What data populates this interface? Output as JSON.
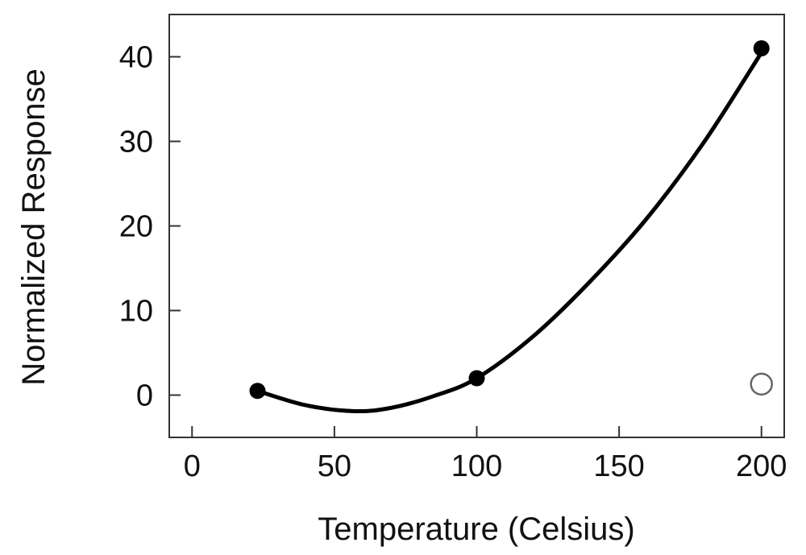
{
  "chart_data": {
    "type": "scatter",
    "xlabel": "Temperature (Celsius)",
    "ylabel": "Normalized Response",
    "xlim": [
      -8,
      208
    ],
    "ylim": [
      -5,
      45
    ],
    "x_ticks": [
      0,
      50,
      100,
      150,
      200
    ],
    "y_ticks": [
      0,
      10,
      20,
      30,
      40
    ],
    "grid": false,
    "series": [
      {
        "style": "filled-markers",
        "points": [
          {
            "x": 23,
            "y": 0.5
          },
          {
            "x": 100,
            "y": 2
          },
          {
            "x": 200,
            "y": 41
          }
        ]
      },
      {
        "style": "open-markers",
        "points": [
          {
            "x": 200,
            "y": 1.3
          }
        ]
      },
      {
        "style": "fitted-curve",
        "x": [
          23,
          40,
          57,
          70,
          85,
          100,
          120,
          140,
          160,
          180,
          200
        ],
        "y": [
          0.5,
          -1.2,
          -1.9,
          -1.5,
          -0.1,
          2.0,
          7.0,
          13.5,
          21.0,
          30.0,
          40.5
        ]
      }
    ],
    "colors": {
      "marker": "#000000",
      "curve": "#000000",
      "open_marker": "#666666",
      "axis": "#333333"
    }
  }
}
